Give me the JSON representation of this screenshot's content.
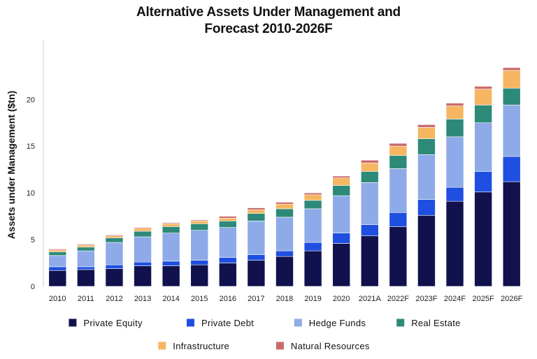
{
  "chart_data": {
    "type": "bar",
    "stacked": true,
    "title_lines": [
      "Alternative Assets Under Management and",
      "Forecast 2010-2026F"
    ],
    "xlabel": "",
    "ylabel": "Assets under Management ($tn)",
    "ylim": [
      0,
      26
    ],
    "yticks": [
      0,
      5,
      10,
      15,
      20
    ],
    "grid": false,
    "legend_position": "bottom",
    "categories": [
      "2010",
      "2011",
      "2012",
      "2013",
      "2014",
      "2015",
      "2016",
      "2017",
      "2018",
      "2019",
      "2020",
      "2021A",
      "2022F",
      "2023F",
      "2024F",
      "2025F",
      "2026F"
    ],
    "series": [
      {
        "name": "Private Equity",
        "color": "#11114e",
        "values": [
          1.7,
          1.8,
          1.9,
          2.2,
          2.2,
          2.3,
          2.5,
          2.8,
          3.2,
          3.8,
          4.6,
          5.4,
          6.4,
          7.6,
          9.1,
          10.1,
          11.2
        ]
      },
      {
        "name": "Private Debt",
        "color": "#1f4fe0",
        "values": [
          0.4,
          0.3,
          0.4,
          0.4,
          0.5,
          0.5,
          0.6,
          0.6,
          0.6,
          0.9,
          1.1,
          1.2,
          1.5,
          1.7,
          1.5,
          2.2,
          2.7
        ]
      },
      {
        "name": "Hedge Funds",
        "color": "#8eaae8",
        "values": [
          1.2,
          1.7,
          2.4,
          2.7,
          3.0,
          3.2,
          3.2,
          3.6,
          3.6,
          3.6,
          4.0,
          4.5,
          4.7,
          4.8,
          5.4,
          5.2,
          5.5
        ]
      },
      {
        "name": "Real Estate",
        "color": "#2e8a78",
        "values": [
          0.4,
          0.4,
          0.5,
          0.6,
          0.7,
          0.7,
          0.7,
          0.8,
          0.9,
          0.9,
          1.1,
          1.2,
          1.4,
          1.7,
          1.9,
          1.9,
          1.8
        ]
      },
      {
        "name": "Infrastructure",
        "color": "#f6b661",
        "values": [
          0.2,
          0.2,
          0.2,
          0.3,
          0.3,
          0.3,
          0.3,
          0.4,
          0.5,
          0.6,
          0.8,
          0.9,
          1.0,
          1.2,
          1.4,
          1.7,
          1.9
        ]
      },
      {
        "name": "Natural Resources",
        "color": "#c86b6b",
        "values": [
          0.1,
          0.1,
          0.1,
          0.1,
          0.1,
          0.1,
          0.2,
          0.2,
          0.2,
          0.2,
          0.2,
          0.3,
          0.3,
          0.3,
          0.3,
          0.3,
          0.3
        ]
      }
    ]
  }
}
